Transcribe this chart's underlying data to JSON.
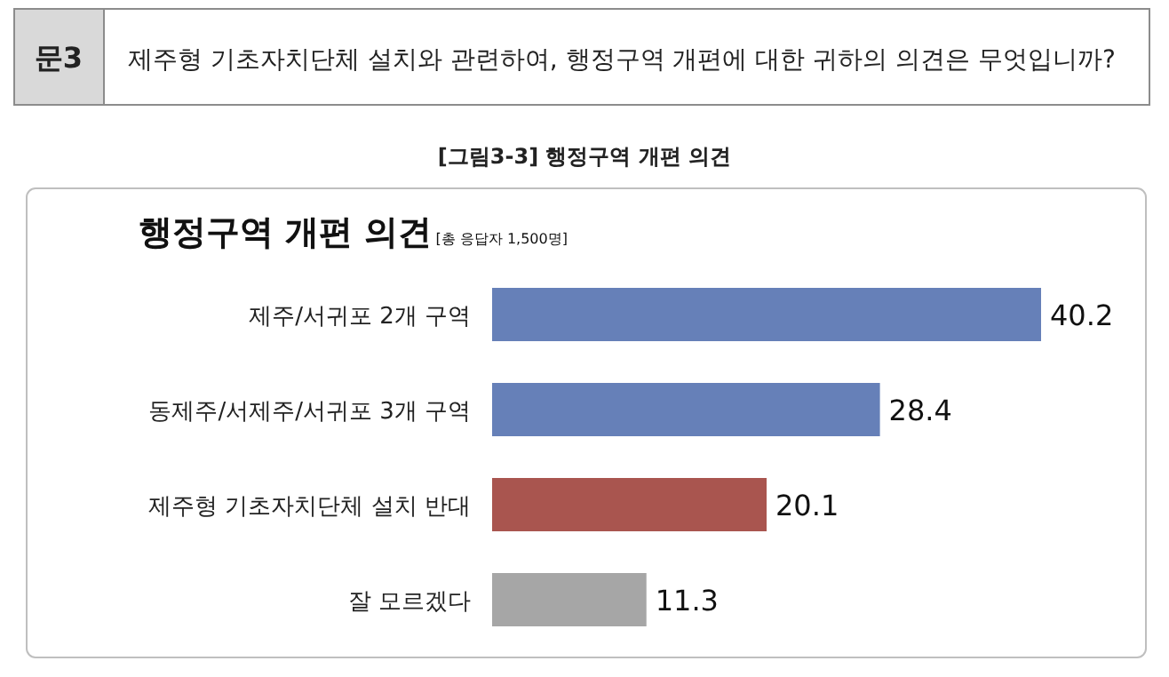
{
  "chart_data": {
    "type": "bar",
    "orientation": "horizontal",
    "title": "행정구역 개편 의견",
    "subtitle": "[총 응답자 1,500명]",
    "annotations": [
      "문3",
      "제주형 기초자치단체 설치와 관련하여, 행정구역 개편에 대한 귀하의 의견은 무엇입니까?",
      "[그림3-3] 행정구역 개편 의견"
    ],
    "categories": [
      "제주/서귀포 2개 구역",
      "동제주/서제주/서귀포 3개 구역",
      "제주형 기초자치단체 설치 반대",
      "잘 모르겠다"
    ],
    "values": [
      40.2,
      28.4,
      20.1,
      11.3
    ],
    "colors": [
      "#6680b8",
      "#6680b8",
      "#a9554f",
      "#a6a6a6"
    ],
    "data_labels": true
  }
}
